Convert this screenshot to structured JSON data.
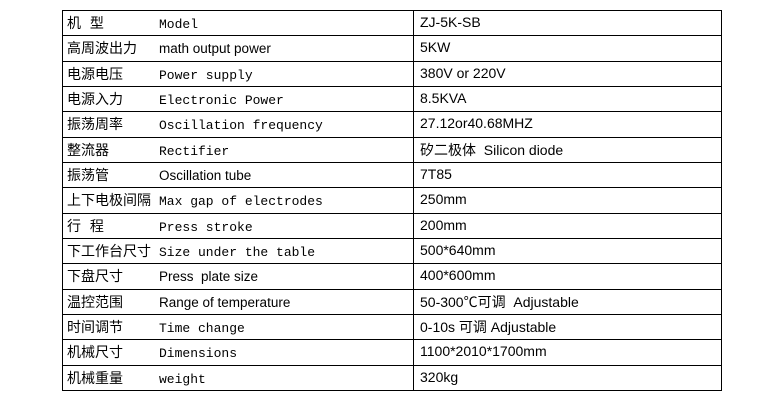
{
  "colors": {
    "background": "#ffffff",
    "border": "#000000",
    "text": "#000000"
  },
  "table": {
    "columns": [
      "label",
      "value"
    ],
    "rows": [
      {
        "cn": "机  型",
        "en": "Model",
        "en_font": "mono",
        "value": "ZJ-5K-SB"
      },
      {
        "cn": "高周波出力",
        "en": "math output power",
        "en_font": "sans",
        "value": "5KW"
      },
      {
        "cn": "电源电压",
        "en": "Power supply",
        "en_font": "mono",
        "value": "380V or 220V"
      },
      {
        "cn": "电源入力",
        "en": "Electronic Power",
        "en_font": "mono",
        "value": "8.5KVA"
      },
      {
        "cn": "振荡周率",
        "en": "Oscillation frequency",
        "en_font": "mono",
        "value": "27.12or40.68MHZ"
      },
      {
        "cn": "整流器",
        "en": "Rectifier",
        "en_font": "mono",
        "value": "矽二极体  Silicon diode"
      },
      {
        "cn": "振荡管",
        "en": "Oscillation tube",
        "en_font": "sans",
        "value": "7T85"
      },
      {
        "cn": "上下电极间隔",
        "en": "Max gap of electrodes",
        "en_font": "mono",
        "value": "250mm"
      },
      {
        "cn": "行  程",
        "en": "Press stroke",
        "en_font": "mono",
        "value": "200mm"
      },
      {
        "cn": "下工作台尺寸",
        "en": "Size under the table",
        "en_font": "mono",
        "value": "500*640mm"
      },
      {
        "cn": "下盘尺寸",
        "en": "Press  plate size",
        "en_font": "sans",
        "value": "400*600mm"
      },
      {
        "cn": "温控范围",
        "en": "Range of temperature",
        "en_font": "sans",
        "value": "50-300℃可调  Adjustable"
      },
      {
        "cn": "时间调节",
        "en": "Time change",
        "en_font": "mono",
        "value": "0-10s 可调 Adjustable"
      },
      {
        "cn": "机械尺寸",
        "en": "Dimensions",
        "en_font": "mono",
        "value": "1100*2010*1700mm"
      },
      {
        "cn": "机械重量",
        "en": "weight",
        "en_font": "mono",
        "value": "320kg"
      }
    ]
  }
}
